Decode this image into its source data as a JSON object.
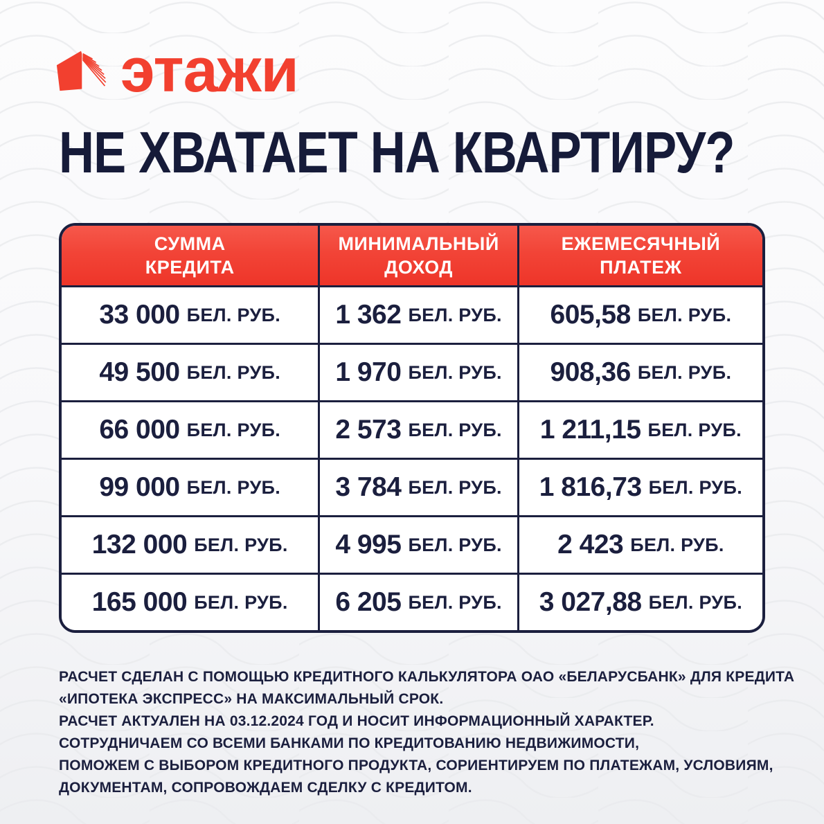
{
  "colors": {
    "brand_red": "#F2402F",
    "header_red": "#F2443A",
    "navy": "#1B1F3E",
    "cell_bg": "#FFFFFF",
    "page_bg": "#F5F5F7"
  },
  "logo": {
    "brand": "этажи",
    "icon": "etazhi-house-icon"
  },
  "headline": "НЕ ХВАТАЕТ НА КВАРТИРУ?",
  "table": {
    "columns": [
      {
        "lines": [
          "СУММА",
          "КРЕДИТА"
        ]
      },
      {
        "lines": [
          "МИНИМАЛЬНЫЙ",
          "ДОХОД"
        ]
      },
      {
        "lines": [
          "ЕЖЕМЕСЯЧНЫЙ",
          "ПЛАТЕЖ"
        ]
      }
    ],
    "unit": "БЕЛ. РУБ.",
    "rows": [
      {
        "credit": "33 000",
        "income": "1 362",
        "payment": "605,58"
      },
      {
        "credit": "49 500",
        "income": "1 970",
        "payment": "908,36"
      },
      {
        "credit": "66 000",
        "income": "2 573",
        "payment": "1 211,15"
      },
      {
        "credit": "99 000",
        "income": "3 784",
        "payment": "1 816,73"
      },
      {
        "credit": "132 000",
        "income": "4 995",
        "payment": "2 423"
      },
      {
        "credit": "165 000",
        "income": "6 205",
        "payment": "3 027,88"
      }
    ]
  },
  "footnote": {
    "lines": [
      "РАСЧЕТ СДЕЛАН С ПОМОЩЬЮ КРЕДИТНОГО КАЛЬКУЛЯТОРА ОАО «БЕЛАРУСБАНК» ДЛЯ КРЕДИТА",
      "«ИПОТЕКА ЭКСПРЕСС» НА МАКСИМАЛЬНЫЙ СРОК.",
      "РАСЧЕТ АКТУАЛЕН НА 03.12.2024 ГОД И НОСИТ ИНФОРМАЦИОННЫЙ ХАРАКТЕР.",
      "СОТРУДНИЧАЕМ СО ВСЕМИ БАНКАМИ ПО КРЕДИТОВАНИЮ НЕДВИЖИМОСТИ,",
      "ПОМОЖЕМ С ВЫБОРОМ КРЕДИТНОГО ПРОДУКТА, СОРИЕНТИРУЕМ ПО ПЛАТЕЖАМ, УСЛОВИЯМ,",
      "ДОКУМЕНТАМ, СОПРОВОЖДАЕМ СДЕЛКУ С КРЕДИТОМ."
    ]
  }
}
